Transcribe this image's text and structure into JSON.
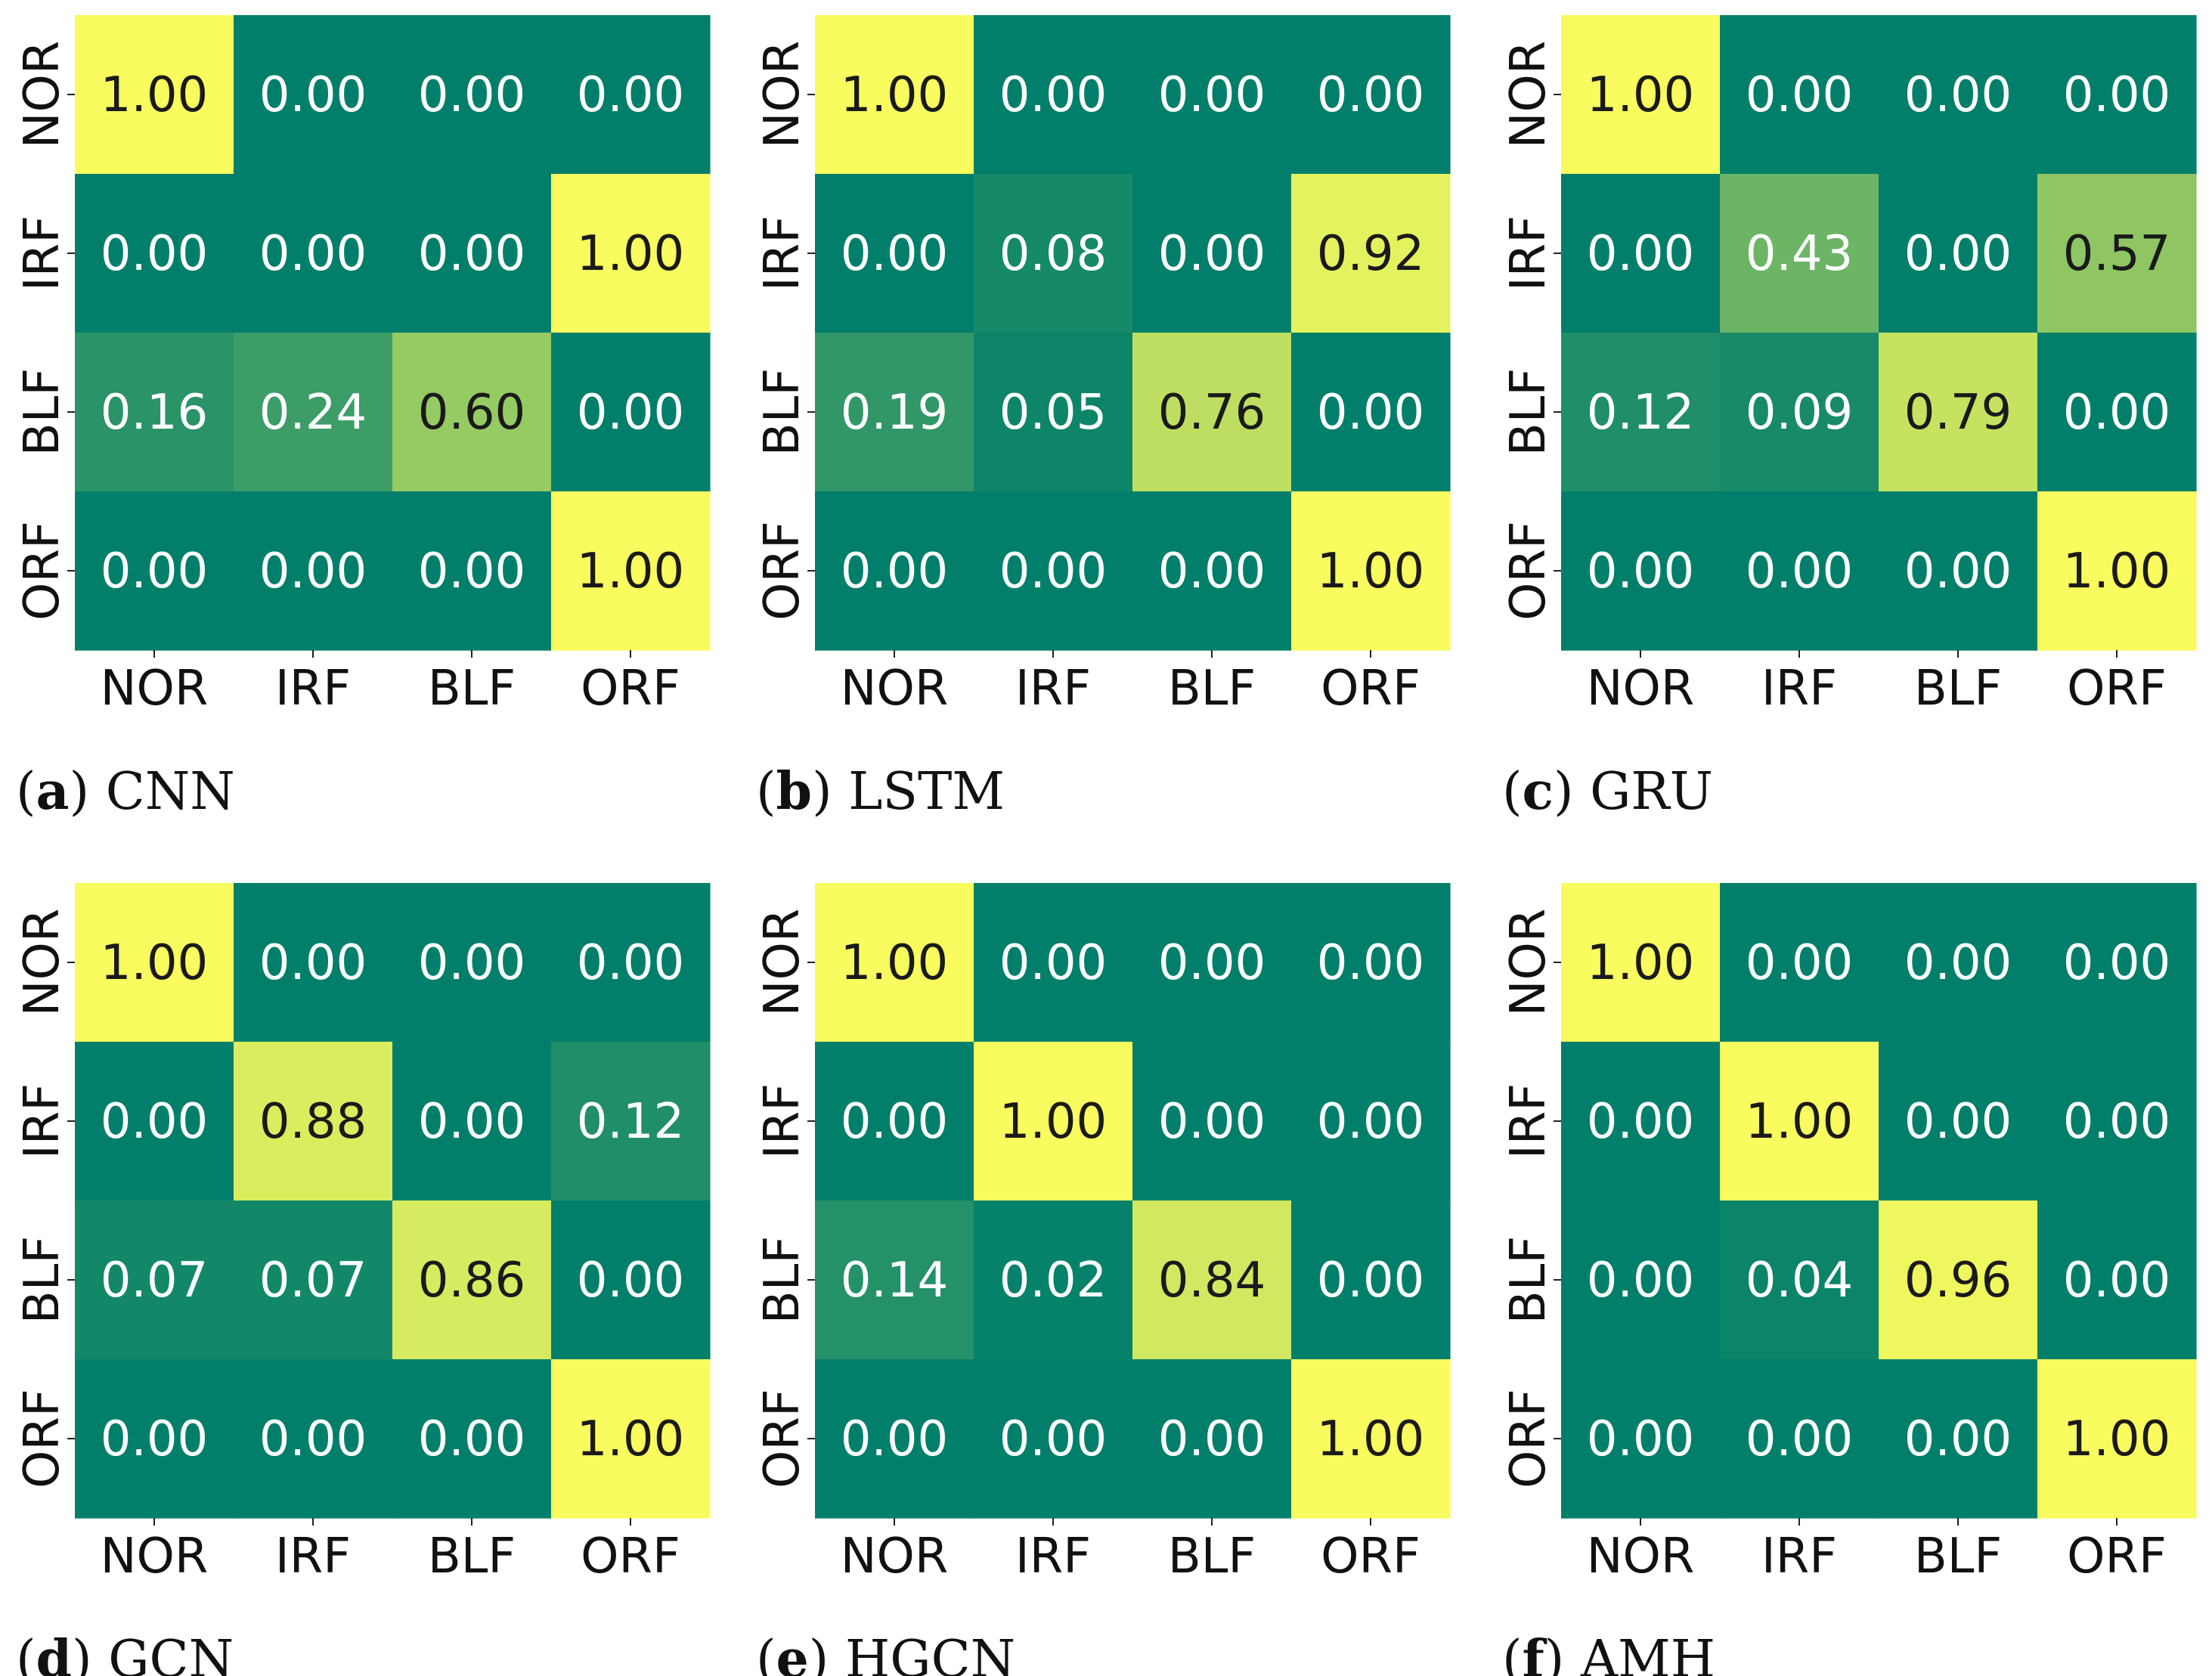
{
  "colors": {
    "low": "#027f6a",
    "high": "#f9fc5e",
    "text_dark": "#1a1a1a",
    "text_light": "#ffffff"
  },
  "chart_data": [
    {
      "type": "heatmap",
      "caption_letter": "a",
      "caption_name": "CNN",
      "row_labels": [
        "NOR",
        "IRF",
        "BLF",
        "ORF"
      ],
      "col_labels": [
        "NOR",
        "IRF",
        "BLF",
        "ORF"
      ],
      "value_range": [
        0,
        1
      ],
      "values": [
        [
          1.0,
          0.0,
          0.0,
          0.0
        ],
        [
          0.0,
          0.0,
          0.0,
          1.0
        ],
        [
          0.16,
          0.24,
          0.6,
          0.0
        ],
        [
          0.0,
          0.0,
          0.0,
          1.0
        ]
      ],
      "labels": [
        [
          "1.00",
          "0.00",
          "0.00",
          "0.00"
        ],
        [
          "0.00",
          "0.00",
          "0.00",
          "1.00"
        ],
        [
          "0.16",
          "0.24",
          "0.60",
          "0.00"
        ],
        [
          "0.00",
          "0.00",
          "0.00",
          "1.00"
        ]
      ]
    },
    {
      "type": "heatmap",
      "caption_letter": "b",
      "caption_name": "LSTM",
      "row_labels": [
        "NOR",
        "IRF",
        "BLF",
        "ORF"
      ],
      "col_labels": [
        "NOR",
        "IRF",
        "BLF",
        "ORF"
      ],
      "value_range": [
        0,
        1
      ],
      "values": [
        [
          1.0,
          0.0,
          0.0,
          0.0
        ],
        [
          0.0,
          0.08,
          0.0,
          0.92
        ],
        [
          0.19,
          0.05,
          0.76,
          0.0
        ],
        [
          0.0,
          0.0,
          0.0,
          1.0
        ]
      ],
      "labels": [
        [
          "1.00",
          "0.00",
          "0.00",
          "0.00"
        ],
        [
          "0.00",
          "0.08",
          "0.00",
          "0.92"
        ],
        [
          "0.19",
          "0.05",
          "0.76",
          "0.00"
        ],
        [
          "0.00",
          "0.00",
          "0.00",
          "1.00"
        ]
      ]
    },
    {
      "type": "heatmap",
      "caption_letter": "c",
      "caption_name": "GRU",
      "row_labels": [
        "NOR",
        "IRF",
        "BLF",
        "ORF"
      ],
      "col_labels": [
        "NOR",
        "IRF",
        "BLF",
        "ORF"
      ],
      "value_range": [
        0,
        1
      ],
      "values": [
        [
          1.0,
          0.0,
          0.0,
          0.0
        ],
        [
          0.0,
          0.43,
          0.0,
          0.57
        ],
        [
          0.12,
          0.09,
          0.79,
          0.0
        ],
        [
          0.0,
          0.0,
          0.0,
          1.0
        ]
      ],
      "labels": [
        [
          "1.00",
          "0.00",
          "0.00",
          "0.00"
        ],
        [
          "0.00",
          "0.43",
          "0.00",
          "0.57"
        ],
        [
          "0.12",
          "0.09",
          "0.79",
          "0.00"
        ],
        [
          "0.00",
          "0.00",
          "0.00",
          "1.00"
        ]
      ]
    },
    {
      "type": "heatmap",
      "caption_letter": "d",
      "caption_name": "GCN",
      "row_labels": [
        "NOR",
        "IRF",
        "BLF",
        "ORF"
      ],
      "col_labels": [
        "NOR",
        "IRF",
        "BLF",
        "ORF"
      ],
      "value_range": [
        0,
        1
      ],
      "values": [
        [
          1.0,
          0.0,
          0.0,
          0.0
        ],
        [
          0.0,
          0.88,
          0.0,
          0.12
        ],
        [
          0.07,
          0.07,
          0.86,
          0.0
        ],
        [
          0.0,
          0.0,
          0.0,
          1.0
        ]
      ],
      "labels": [
        [
          "1.00",
          "0.00",
          "0.00",
          "0.00"
        ],
        [
          "0.00",
          "0.88",
          "0.00",
          "0.12"
        ],
        [
          "0.07",
          "0.07",
          "0.86",
          "0.00"
        ],
        [
          "0.00",
          "0.00",
          "0.00",
          "1.00"
        ]
      ]
    },
    {
      "type": "heatmap",
      "caption_letter": "e",
      "caption_name": "HGCN",
      "row_labels": [
        "NOR",
        "IRF",
        "BLF",
        "ORF"
      ],
      "col_labels": [
        "NOR",
        "IRF",
        "BLF",
        "ORF"
      ],
      "value_range": [
        0,
        1
      ],
      "values": [
        [
          1.0,
          0.0,
          0.0,
          0.0
        ],
        [
          0.0,
          1.0,
          0.0,
          0.0
        ],
        [
          0.14,
          0.02,
          0.84,
          0.0
        ],
        [
          0.0,
          0.0,
          0.0,
          1.0
        ]
      ],
      "labels": [
        [
          "1.00",
          "0.00",
          "0.00",
          "0.00"
        ],
        [
          "0.00",
          "1.00",
          "0.00",
          "0.00"
        ],
        [
          "0.14",
          "0.02",
          "0.84",
          "0.00"
        ],
        [
          "0.00",
          "0.00",
          "0.00",
          "1.00"
        ]
      ]
    },
    {
      "type": "heatmap",
      "caption_letter": "f",
      "caption_name": "AMH",
      "row_labels": [
        "NOR",
        "IRF",
        "BLF",
        "ORF"
      ],
      "col_labels": [
        "NOR",
        "IRF",
        "BLF",
        "ORF"
      ],
      "value_range": [
        0,
        1
      ],
      "values": [
        [
          1.0,
          0.0,
          0.0,
          0.0
        ],
        [
          0.0,
          1.0,
          0.0,
          0.0
        ],
        [
          0.0,
          0.04,
          0.96,
          0.0
        ],
        [
          0.0,
          0.0,
          0.0,
          1.0
        ]
      ],
      "labels": [
        [
          "1.00",
          "0.00",
          "0.00",
          "0.00"
        ],
        [
          "0.00",
          "1.00",
          "0.00",
          "0.00"
        ],
        [
          "0.00",
          "0.04",
          "0.96",
          "0.00"
        ],
        [
          "0.00",
          "0.00",
          "0.00",
          "1.00"
        ]
      ]
    }
  ]
}
